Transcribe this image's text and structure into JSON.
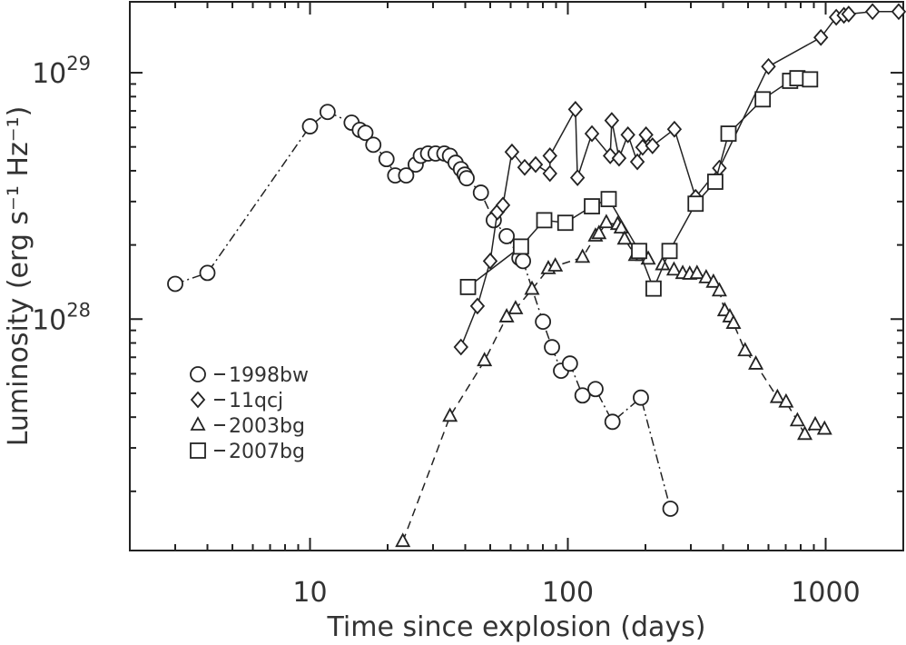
{
  "chart_data": {
    "type": "scatter-line",
    "xlabel": "Time since explosion (days)",
    "ylabel": "Luminosity (erg s⁻¹ Hz⁻¹)",
    "xscale": "log",
    "yscale": "log",
    "xlim": [
      2,
      2000
    ],
    "ylim": [
      1.15e+27,
      1.94e+29
    ],
    "xticks": [
      10,
      100,
      1000
    ],
    "xminorticks": [
      2,
      3,
      4,
      5,
      6,
      7,
      8,
      9,
      20,
      30,
      40,
      50,
      60,
      70,
      80,
      90,
      200,
      300,
      400,
      500,
      600,
      700,
      800,
      900
    ],
    "yticks": [
      {
        "value": 1e+28,
        "label": "10",
        "sup": "28"
      },
      {
        "value": 1e+29,
        "label": "10",
        "sup": "29"
      }
    ],
    "yminorticks": [
      2e+27,
      3e+27,
      4e+27,
      5e+27,
      6e+27,
      7e+27,
      8e+27,
      9e+27,
      2e+28,
      3e+28,
      4e+28,
      5e+28,
      6e+28,
      7e+28,
      8e+28,
      9e+28
    ],
    "legend": "lower left",
    "series": [
      {
        "name": "1998bw",
        "marker": "circle",
        "dash": "dashdot",
        "color": "#222222",
        "x": [
          3,
          4,
          10,
          11.7,
          14.5,
          15.6,
          16.4,
          17.6,
          19.8,
          21.4,
          23.6,
          25.7,
          26.9,
          28.7,
          30.7,
          33.2,
          34.9,
          36.7,
          38.5,
          39.8,
          40.5,
          46,
          51.6,
          57.9,
          64.9,
          67,
          80.1,
          86.8,
          94.1,
          101.9,
          114,
          128,
          149,
          192,
          250
        ],
        "values": [
          1.39e+28,
          1.54e+28,
          6.06e+28,
          6.93e+28,
          6.27e+28,
          5.86e+28,
          5.7e+28,
          5.1e+28,
          4.46e+28,
          3.83e+28,
          3.83e+28,
          4.24e+28,
          4.6e+28,
          4.7e+28,
          4.7e+28,
          4.7e+28,
          4.6e+28,
          4.31e+28,
          4.06e+28,
          3.86e+28,
          3.73e+28,
          3.26e+28,
          2.52e+28,
          2.17e+28,
          1.77e+28,
          1.72e+28,
          9.76e+27,
          7.69e+27,
          6.17e+27,
          6.6e+27,
          4.9e+27,
          5.2e+27,
          3.83e+27,
          4.8e+27,
          1.7e+27
        ]
      },
      {
        "name": "11qcj",
        "marker": "diamond",
        "dash": "solid",
        "color": "#222222",
        "x": [
          38.5,
          44.6,
          50,
          53.3,
          56,
          60.7,
          68,
          75,
          85.2,
          85.2,
          107,
          109,
          124,
          146,
          148,
          158,
          171,
          186,
          195,
          201,
          213,
          259,
          313,
          387,
          600,
          958,
          1099,
          1177,
          1228,
          1520,
          1920
        ],
        "values": [
          7.7e+27,
          1.13e+28,
          1.72e+28,
          2.72e+28,
          2.9e+28,
          4.77e+28,
          4.13e+28,
          4.24e+28,
          3.9e+28,
          4.6e+28,
          7.1e+28,
          3.75e+28,
          5.66e+28,
          4.6e+28,
          6.4e+28,
          4.5e+28,
          5.6e+28,
          4.35e+28,
          4.98e+28,
          5.6e+28,
          5.05e+28,
          5.9e+28,
          3.12e+28,
          4.1e+28,
          1.06e+29,
          1.39e+29,
          1.68e+29,
          1.71e+29,
          1.73e+29,
          1.77e+29,
          1.77e+29
        ]
      },
      {
        "name": "2003bg",
        "marker": "triangle",
        "dash": "dashed",
        "color": "#222222",
        "x": [
          22.9,
          34.9,
          47.5,
          57.9,
          62.7,
          72.6,
          84,
          89.4,
          114,
          128,
          132,
          141,
          156,
          161,
          166,
          183,
          195,
          205,
          233,
          258,
          279,
          297,
          317,
          344,
          367,
          387,
          406,
          425,
          439,
          487,
          536,
          650,
          702,
          777,
          830,
          911,
          990
        ],
        "values": [
          1.25e+27,
          4.03e+27,
          6.77e+27,
          1.02e+28,
          1.1e+28,
          1.32e+28,
          1.6e+28,
          1.64e+28,
          1.78e+28,
          2.17e+28,
          2.22e+28,
          2.46e+28,
          2.42e+28,
          2.34e+28,
          2.11e+28,
          1.81e+28,
          1.81e+28,
          1.75e+28,
          1.66e+28,
          1.58e+28,
          1.53e+28,
          1.52e+28,
          1.53e+28,
          1.47e+28,
          1.41e+28,
          1.3e+28,
          1.08e+28,
          1.02e+28,
          9.6e+27,
          7.43e+27,
          6.56e+27,
          4.8e+27,
          4.6e+27,
          3.86e+27,
          3.4e+27,
          3.72e+27,
          3.57e+27
        ]
      },
      {
        "name": "2007bg",
        "marker": "square",
        "dash": "solid",
        "color": "#222222",
        "x": [
          41,
          65.8,
          81,
          97.8,
          124,
          144,
          189,
          215,
          248,
          313,
          373,
          420,
          570,
          728,
          777,
          870
        ],
        "values": [
          1.35e+28,
          1.97e+28,
          2.52e+28,
          2.46e+28,
          2.87e+28,
          3.07e+28,
          1.89e+28,
          1.33e+28,
          1.89e+28,
          2.94e+28,
          3.61e+28,
          5.66e+28,
          7.8e+28,
          9.27e+28,
          9.5e+28,
          9.4e+28
        ]
      }
    ]
  }
}
